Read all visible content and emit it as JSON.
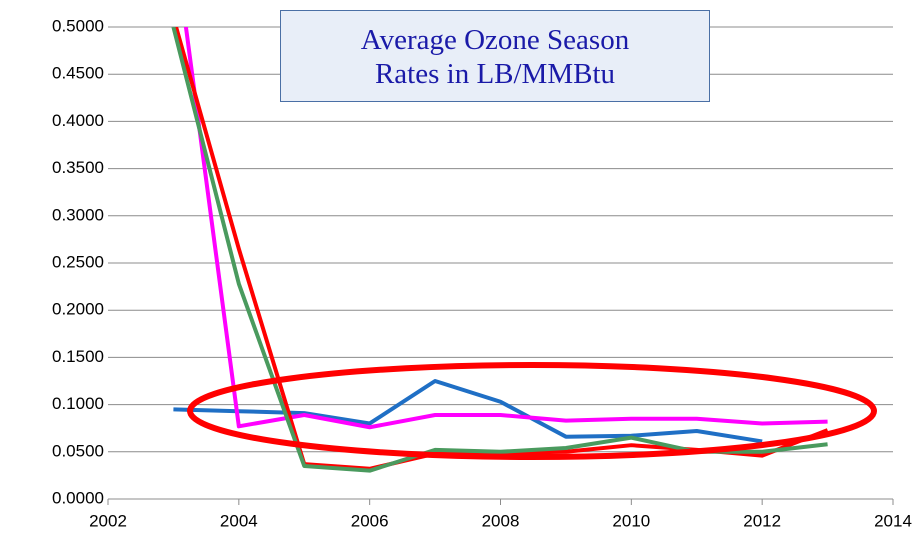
{
  "chart_data": {
    "type": "line",
    "title": "Average Ozone Season Rates in LB/MMBtu",
    "x": [
      2003,
      2004,
      2005,
      2006,
      2007,
      2008,
      2009,
      2010,
      2011,
      2012,
      2013
    ],
    "series": [
      {
        "color": "#1f6fc5",
        "values": [
          0.095,
          0.093,
          0.091,
          0.08,
          0.125,
          0.103,
          0.066,
          0.067,
          0.072,
          0.061,
          null
        ]
      },
      {
        "color": "#ff00ff",
        "values": [
          0.6,
          0.077,
          0.089,
          0.076,
          0.089,
          0.089,
          0.083,
          0.085,
          0.085,
          0.08,
          0.082
        ]
      },
      {
        "color": "#ff0000",
        "values": [
          0.51,
          0.265,
          0.037,
          0.032,
          0.048,
          0.049,
          0.05,
          0.057,
          0.052,
          0.046,
          0.073
        ]
      },
      {
        "color": "#4a9a5e",
        "values": [
          0.5,
          0.228,
          0.035,
          0.03,
          0.052,
          0.05,
          0.054,
          0.065,
          0.05,
          0.05,
          0.058
        ]
      }
    ],
    "xlim": [
      2002,
      2014
    ],
    "xticks": [
      2002,
      2004,
      2006,
      2008,
      2010,
      2012,
      2014
    ],
    "ylim": [
      0,
      0.5
    ],
    "yticks": [
      {
        "value": 0,
        "label": "0.0000"
      },
      {
        "value": 0.05,
        "label": "0.0500"
      },
      {
        "value": 0.1,
        "label": "0.1000"
      },
      {
        "value": 0.15,
        "label": "0.1500"
      },
      {
        "value": 0.2,
        "label": "0.2000"
      },
      {
        "value": 0.25,
        "label": "0.2500"
      },
      {
        "value": 0.3,
        "label": "0.3000"
      },
      {
        "value": 0.35,
        "label": "0.3500"
      },
      {
        "value": 0.4,
        "label": "0.4000"
      },
      {
        "value": 0.45,
        "label": "0.4500"
      },
      {
        "value": 0.5,
        "label": "0.5000"
      }
    ],
    "grid": true
  }
}
